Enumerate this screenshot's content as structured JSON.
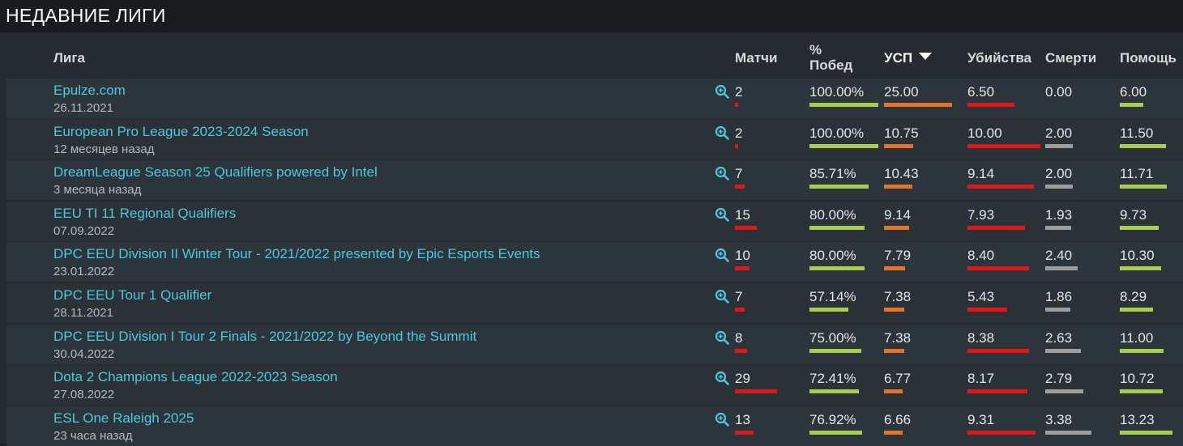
{
  "section_title": "НЕДАВНИЕ ЛИГИ",
  "headers": {
    "league": "Лига",
    "matches": "Матчи",
    "winrate_line1": "%",
    "winrate_line2": "Побед",
    "kda": "УСП",
    "kills": "Убийства",
    "deaths": "Смерти",
    "assists": "Помощь"
  },
  "colors": {
    "link": "#4dc8dd",
    "bar_red": "#e0161b",
    "bar_green": "#a6cf52",
    "bar_orange": "#e57428",
    "bar_grey": "#9e9e9e"
  },
  "sort": {
    "column": "УСП",
    "direction": "desc"
  },
  "rows": [
    {
      "name": "Epulze.com",
      "date": "26.11.2021",
      "matches": "2",
      "winrate": "100.00%",
      "kda": "25.00",
      "kills": "6.50",
      "deaths": "0.00",
      "assists": "6.00",
      "bars": {
        "matches": 0.07,
        "winrate": 1.0,
        "kda": 1.0,
        "kills": 0.64,
        "deaths": 0.0,
        "assists": 0.45
      }
    },
    {
      "name": "European Pro League 2023-2024 Season",
      "date": "12 месяцев назад",
      "matches": "2",
      "winrate": "100.00%",
      "kda": "10.75",
      "kills": "10.00",
      "deaths": "2.00",
      "assists": "11.50",
      "bars": {
        "matches": 0.07,
        "winrate": 1.0,
        "kda": 0.43,
        "kills": 1.0,
        "deaths": 0.59,
        "assists": 0.87
      }
    },
    {
      "name": "DreamLeague Season 25 Qualifiers powered by Intel",
      "date": "3 месяца назад",
      "matches": "7",
      "winrate": "85.71%",
      "kda": "10.43",
      "kills": "9.14",
      "deaths": "2.00",
      "assists": "11.71",
      "bars": {
        "matches": 0.24,
        "winrate": 0.86,
        "kda": 0.42,
        "kills": 0.91,
        "deaths": 0.59,
        "assists": 0.89
      }
    },
    {
      "name": "EEU TI 11 Regional Qualifiers",
      "date": "07.09.2022",
      "matches": "15",
      "winrate": "80.00%",
      "kda": "9.14",
      "kills": "7.93",
      "deaths": "1.93",
      "assists": "9.73",
      "bars": {
        "matches": 0.52,
        "winrate": 0.8,
        "kda": 0.37,
        "kills": 0.79,
        "deaths": 0.57,
        "assists": 0.74
      }
    },
    {
      "name": "DPC EEU Division II Winter Tour - 2021/2022 presented by Epic Esports Events",
      "date": "23.01.2022",
      "matches": "10",
      "winrate": "80.00%",
      "kda": "7.79",
      "kills": "8.40",
      "deaths": "2.40",
      "assists": "10.30",
      "bars": {
        "matches": 0.34,
        "winrate": 0.8,
        "kda": 0.31,
        "kills": 0.84,
        "deaths": 0.71,
        "assists": 0.78
      }
    },
    {
      "name": "DPC EEU Tour 1 Qualifier",
      "date": "28.11.2021",
      "matches": "7",
      "winrate": "57.14%",
      "kda": "7.38",
      "kills": "5.43",
      "deaths": "1.86",
      "assists": "8.29",
      "bars": {
        "matches": 0.24,
        "winrate": 0.57,
        "kda": 0.3,
        "kills": 0.54,
        "deaths": 0.55,
        "assists": 0.63
      }
    },
    {
      "name": "DPC EEU Division I Tour 2 Finals - 2021/2022 by Beyond the Summit",
      "date": "30.04.2022",
      "matches": "8",
      "winrate": "75.00%",
      "kda": "7.38",
      "kills": "8.38",
      "deaths": "2.63",
      "assists": "11.00",
      "bars": {
        "matches": 0.28,
        "winrate": 0.75,
        "kda": 0.3,
        "kills": 0.84,
        "deaths": 0.78,
        "assists": 0.83
      }
    },
    {
      "name": "Dota 2 Champions League 2022-2023 Season",
      "date": "27.08.2022",
      "matches": "29",
      "winrate": "72.41%",
      "kda": "6.77",
      "kills": "8.17",
      "deaths": "2.79",
      "assists": "10.72",
      "bars": {
        "matches": 1.0,
        "winrate": 0.72,
        "kda": 0.27,
        "kills": 0.82,
        "deaths": 0.83,
        "assists": 0.81
      }
    },
    {
      "name": "ESL One Raleigh 2025",
      "date": "23 часа назад",
      "matches": "13",
      "winrate": "76.92%",
      "kda": "6.66",
      "kills": "9.31",
      "deaths": "3.38",
      "assists": "13.23",
      "bars": {
        "matches": 0.45,
        "winrate": 0.77,
        "kda": 0.27,
        "kills": 0.93,
        "deaths": 1.0,
        "assists": 1.0
      }
    }
  ]
}
